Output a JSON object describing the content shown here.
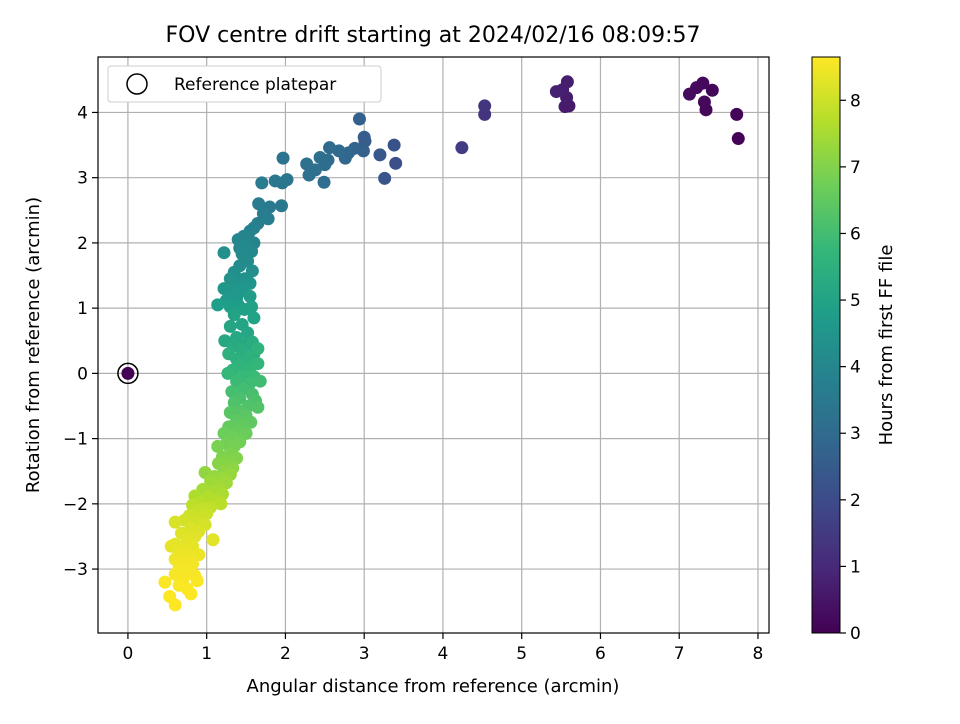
{
  "chart_data": {
    "type": "scatter",
    "title": "FOV centre drift starting at 2024/02/16 08:09:57",
    "xlabel": "Angular distance from reference (arcmin)",
    "ylabel": "Rotation from reference (arcmin)",
    "xlim": [
      -0.38,
      8.14
    ],
    "ylim": [
      -3.98,
      4.85
    ],
    "xticks": [
      0,
      1,
      2,
      3,
      4,
      5,
      6,
      7,
      8
    ],
    "yticks": [
      -3,
      -2,
      -1,
      0,
      1,
      2,
      3,
      4
    ],
    "grid": true,
    "legend": {
      "location": "upper-left",
      "entries": [
        "Reference platepar"
      ]
    },
    "reference_point": {
      "x": 0,
      "y": 0
    },
    "colorbar": {
      "label": "Hours from first FF file",
      "range": [
        0,
        8.65
      ],
      "ticks": [
        0,
        1,
        2,
        3,
        4,
        5,
        6,
        7,
        8
      ],
      "colormap": "viridis"
    },
    "colormap_stops": [
      "#440154",
      "#482878",
      "#3e4989",
      "#31688e",
      "#26828e",
      "#1f9e89",
      "#35b779",
      "#6ece58",
      "#b5de2b",
      "#fde725"
    ],
    "points": [
      [
        0,
        0,
        0.02
      ],
      [
        7.75,
        3.6,
        0.05
      ],
      [
        7.73,
        3.97,
        0.08
      ],
      [
        7.42,
        4.34,
        0.12
      ],
      [
        7.34,
        4.04,
        0.15
      ],
      [
        7.32,
        4.16,
        0.18
      ],
      [
        7.3,
        4.45,
        0.2
      ],
      [
        7.22,
        4.38,
        0.23
      ],
      [
        7.13,
        4.28,
        0.27
      ],
      [
        5.6,
        4.1,
        0.6
      ],
      [
        5.55,
        4.09,
        0.63
      ],
      [
        5.57,
        4.23,
        0.66
      ],
      [
        5.58,
        4.47,
        0.7
      ],
      [
        5.52,
        4.35,
        0.74
      ],
      [
        5.44,
        4.32,
        0.78
      ],
      [
        4.53,
        3.97,
        1.3
      ],
      [
        4.53,
        4.1,
        1.35
      ],
      [
        4.24,
        3.46,
        1.55
      ],
      [
        3.4,
        3.22,
        2.1
      ],
      [
        3.38,
        3.5,
        2.2
      ],
      [
        3.26,
        2.99,
        2.3
      ],
      [
        3.2,
        3.35,
        2.4
      ],
      [
        3.01,
        3.56,
        2.5
      ],
      [
        3.0,
        3.62,
        2.55
      ],
      [
        2.99,
        3.41,
        2.6
      ],
      [
        2.94,
        3.9,
        2.65
      ],
      [
        2.88,
        3.45,
        2.75
      ],
      [
        2.8,
        3.38,
        2.85
      ],
      [
        2.76,
        3.3,
        2.9
      ],
      [
        2.68,
        3.41,
        2.95
      ],
      [
        2.56,
        3.46,
        3.0
      ],
      [
        2.54,
        3.27,
        3.05
      ],
      [
        2.5,
        3.2,
        3.08
      ],
      [
        2.49,
        2.93,
        3.1
      ],
      [
        2.44,
        3.31,
        3.13
      ],
      [
        2.38,
        3.12,
        3.17
      ],
      [
        2.3,
        3.04,
        3.2
      ],
      [
        2.27,
        3.21,
        3.23
      ],
      [
        1.97,
        3.3,
        3.3
      ],
      [
        2.02,
        2.97,
        3.35
      ],
      [
        1.96,
        2.92,
        3.38
      ],
      [
        1.87,
        2.95,
        3.42
      ],
      [
        1.95,
        2.57,
        3.46
      ],
      [
        1.8,
        2.55,
        3.5
      ],
      [
        1.73,
        2.5,
        3.54
      ],
      [
        1.7,
        2.92,
        3.58
      ],
      [
        1.66,
        2.6,
        3.62
      ],
      [
        1.78,
        2.37,
        3.66
      ],
      [
        1.72,
        2.45,
        3.7
      ],
      [
        1.65,
        2.3,
        3.74
      ],
      [
        1.6,
        2.23,
        3.78
      ],
      [
        1.55,
        2.18,
        3.82
      ],
      [
        1.52,
        2.08,
        3.86
      ],
      [
        1.6,
        2.0,
        3.9
      ],
      [
        1.47,
        2.1,
        3.93
      ],
      [
        1.4,
        2.05,
        3.96
      ],
      [
        1.42,
        1.92,
        4.0
      ],
      [
        1.57,
        1.87,
        4.04
      ],
      [
        1.5,
        1.97,
        4.08
      ],
      [
        1.45,
        1.83,
        4.12
      ],
      [
        1.52,
        1.72,
        4.16
      ],
      [
        1.42,
        1.65,
        4.2
      ],
      [
        1.58,
        1.57,
        4.24
      ],
      [
        1.35,
        1.55,
        4.28
      ],
      [
        1.22,
        1.85,
        4.32
      ],
      [
        1.48,
        1.45,
        4.36
      ],
      [
        1.3,
        1.45,
        4.4
      ],
      [
        1.4,
        1.38,
        4.44
      ],
      [
        1.55,
        1.38,
        4.48
      ],
      [
        1.32,
        1.28,
        4.52
      ],
      [
        1.22,
        1.3,
        4.56
      ],
      [
        1.46,
        1.27,
        4.6
      ],
      [
        1.38,
        1.15,
        4.64
      ],
      [
        1.25,
        1.12,
        4.68
      ],
      [
        1.55,
        1.18,
        4.72
      ],
      [
        1.4,
        1.05,
        4.76
      ],
      [
        1.14,
        1.05,
        4.8
      ],
      [
        1.3,
        1.02,
        4.84
      ],
      [
        1.48,
        0.98,
        4.88
      ],
      [
        1.57,
        1.02,
        4.92
      ],
      [
        1.35,
        0.9,
        4.96
      ],
      [
        1.6,
        0.85,
        5.0
      ],
      [
        1.45,
        0.75,
        5.04
      ],
      [
        1.3,
        0.72,
        5.08
      ],
      [
        1.52,
        0.62,
        5.12
      ],
      [
        1.38,
        0.55,
        5.16
      ],
      [
        1.23,
        0.5,
        5.2
      ],
      [
        1.5,
        0.45,
        5.24
      ],
      [
        1.34,
        0.42,
        5.28
      ],
      [
        1.58,
        0.48,
        5.32
      ],
      [
        1.45,
        0.35,
        5.36
      ],
      [
        1.6,
        0.3,
        5.4
      ],
      [
        1.28,
        0.3,
        5.44
      ],
      [
        1.38,
        0.22,
        5.48
      ],
      [
        1.53,
        0.25,
        5.52
      ],
      [
        1.65,
        0.38,
        5.56
      ],
      [
        1.42,
        0.12,
        5.6
      ],
      [
        1.33,
        0.05,
        5.64
      ],
      [
        1.55,
        0.08,
        5.68
      ],
      [
        1.65,
        0.15,
        5.72
      ],
      [
        1.27,
        0.0,
        5.76
      ],
      [
        1.47,
        -0.05,
        5.8
      ],
      [
        1.6,
        -0.05,
        5.84
      ],
      [
        1.38,
        -0.12,
        5.88
      ],
      [
        1.55,
        -0.15,
        5.92
      ],
      [
        1.68,
        -0.12,
        5.96
      ],
      [
        1.45,
        -0.25,
        6.0
      ],
      [
        1.32,
        -0.28,
        6.04
      ],
      [
        1.58,
        -0.32,
        6.08
      ],
      [
        1.42,
        -0.38,
        6.12
      ],
      [
        1.62,
        -0.42,
        6.16
      ],
      [
        1.35,
        -0.45,
        6.2
      ],
      [
        1.53,
        -0.5,
        6.24
      ],
      [
        1.65,
        -0.52,
        6.28
      ],
      [
        1.42,
        -0.58,
        6.32
      ],
      [
        1.3,
        -0.6,
        6.36
      ],
      [
        1.5,
        -0.65,
        6.4
      ],
      [
        1.38,
        -0.72,
        6.44
      ],
      [
        1.56,
        -0.75,
        6.48
      ],
      [
        1.45,
        -0.8,
        6.52
      ],
      [
        1.28,
        -0.82,
        6.56
      ],
      [
        1.4,
        -0.88,
        6.6
      ],
      [
        1.5,
        -0.92,
        6.64
      ],
      [
        1.22,
        -0.92,
        6.68
      ],
      [
        1.33,
        -0.98,
        6.72
      ],
      [
        1.42,
        -1.05,
        6.76
      ],
      [
        1.25,
        -1.08,
        6.8
      ],
      [
        1.35,
        -1.12,
        6.84
      ],
      [
        1.14,
        -1.12,
        6.88
      ],
      [
        1.3,
        -1.22,
        6.92
      ],
      [
        1.2,
        -1.28,
        6.96
      ],
      [
        1.38,
        -1.3,
        7.0
      ],
      [
        1.27,
        -1.35,
        7.04
      ],
      [
        1.15,
        -1.38,
        7.08
      ],
      [
        1.33,
        -1.45,
        7.12
      ],
      [
        1.22,
        -1.5,
        7.16
      ],
      [
        0.98,
        -1.52,
        7.2
      ],
      [
        1.1,
        -1.58,
        7.24
      ],
      [
        1.3,
        -1.55,
        7.28
      ],
      [
        1.2,
        -1.62,
        7.32
      ],
      [
        1.05,
        -1.65,
        7.36
      ],
      [
        1.25,
        -1.68,
        7.4
      ],
      [
        1.15,
        -1.75,
        7.44
      ],
      [
        0.95,
        -1.78,
        7.48
      ],
      [
        1.08,
        -1.82,
        7.52
      ],
      [
        1.2,
        -1.85,
        7.56
      ],
      [
        0.85,
        -1.88,
        7.6
      ],
      [
        1.02,
        -1.9,
        7.64
      ],
      [
        1.12,
        -1.95,
        7.68
      ],
      [
        0.92,
        -1.98,
        7.72
      ],
      [
        1.18,
        -2.0,
        7.76
      ],
      [
        0.82,
        -2.02,
        7.8
      ],
      [
        1.05,
        -2.05,
        7.84
      ],
      [
        0.95,
        -2.08,
        7.88
      ],
      [
        0.88,
        -2.12,
        7.92
      ],
      [
        1.0,
        -2.15,
        7.96
      ],
      [
        0.78,
        -2.18,
        8.0
      ],
      [
        0.92,
        -2.22,
        8.02
      ],
      [
        0.85,
        -2.28,
        8.05
      ],
      [
        0.72,
        -2.25,
        8.08
      ],
      [
        0.98,
        -2.32,
        8.11
      ],
      [
        0.6,
        -2.28,
        8.14
      ],
      [
        0.8,
        -2.38,
        8.17
      ],
      [
        0.9,
        -2.42,
        8.2
      ],
      [
        0.68,
        -2.45,
        8.23
      ],
      [
        0.85,
        -2.5,
        8.26
      ],
      [
        1.08,
        -2.55,
        8.28
      ],
      [
        0.75,
        -2.55,
        8.3
      ],
      [
        0.6,
        -2.62,
        8.32
      ],
      [
        0.82,
        -2.65,
        8.34
      ],
      [
        0.55,
        -2.65,
        8.36
      ],
      [
        0.72,
        -2.7,
        8.38
      ],
      [
        0.65,
        -2.75,
        8.4
      ],
      [
        0.9,
        -2.78,
        8.42
      ],
      [
        0.78,
        -2.8,
        8.44
      ],
      [
        0.6,
        -2.85,
        8.46
      ],
      [
        0.7,
        -2.9,
        8.48
      ],
      [
        0.82,
        -2.92,
        8.5
      ],
      [
        0.65,
        -2.98,
        8.52
      ],
      [
        0.75,
        -3.02,
        8.54
      ],
      [
        0.6,
        -3.08,
        8.56
      ],
      [
        0.85,
        -3.1,
        8.57
      ],
      [
        0.7,
        -3.15,
        8.58
      ],
      [
        0.88,
        -3.18,
        8.59
      ],
      [
        0.47,
        -3.2,
        8.6
      ],
      [
        0.65,
        -3.25,
        8.61
      ],
      [
        0.75,
        -3.3,
        8.62
      ],
      [
        0.8,
        -3.38,
        8.63
      ],
      [
        0.53,
        -3.42,
        8.64
      ],
      [
        0.6,
        -3.55,
        8.65
      ]
    ]
  }
}
